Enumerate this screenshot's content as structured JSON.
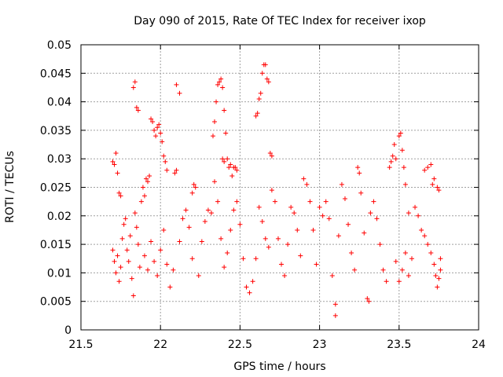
{
  "chart_data": {
    "type": "scatter",
    "title": "Day 090 of 2015, Rate Of TEC Index for receiver ixop",
    "xlabel": "GPS time / hours",
    "ylabel": "ROTI / TECUs",
    "xlim": [
      21.5,
      24
    ],
    "ylim": [
      0,
      0.05
    ],
    "grid": true,
    "marker": "+",
    "color": "#ff0000",
    "x_ticks": [
      "21.5",
      "22",
      "22.5",
      "23",
      "23.5",
      "24"
    ],
    "y_ticks": [
      "0",
      "0.005",
      "0.01",
      "0.015",
      "0.02",
      "0.025",
      "0.03",
      "0.035",
      "0.04",
      "0.045",
      "0.05"
    ],
    "series": [
      {
        "name": "ROTI",
        "points": [
          [
            21.7,
            0.0295
          ],
          [
            21.71,
            0.029
          ],
          [
            21.72,
            0.031
          ],
          [
            21.73,
            0.0275
          ],
          [
            21.74,
            0.024
          ],
          [
            21.75,
            0.0235
          ],
          [
            21.7,
            0.014
          ],
          [
            21.71,
            0.012
          ],
          [
            21.72,
            0.01
          ],
          [
            21.73,
            0.013
          ],
          [
            21.74,
            0.0085
          ],
          [
            21.75,
            0.011
          ],
          [
            21.76,
            0.016
          ],
          [
            21.77,
            0.0185
          ],
          [
            21.78,
            0.0195
          ],
          [
            21.79,
            0.014
          ],
          [
            21.8,
            0.012
          ],
          [
            21.81,
            0.0165
          ],
          [
            21.82,
            0.009
          ],
          [
            21.83,
            0.006
          ],
          [
            21.84,
            0.0205
          ],
          [
            21.85,
            0.018
          ],
          [
            21.86,
            0.015
          ],
          [
            21.87,
            0.011
          ],
          [
            21.83,
            0.0425
          ],
          [
            21.84,
            0.0435
          ],
          [
            21.85,
            0.039
          ],
          [
            21.86,
            0.0385
          ],
          [
            21.88,
            0.0225
          ],
          [
            21.89,
            0.025
          ],
          [
            21.9,
            0.0235
          ],
          [
            21.91,
            0.0265
          ],
          [
            21.92,
            0.026
          ],
          [
            21.93,
            0.027
          ],
          [
            21.94,
            0.037
          ],
          [
            21.95,
            0.0365
          ],
          [
            21.96,
            0.035
          ],
          [
            21.97,
            0.034
          ],
          [
            21.98,
            0.0355
          ],
          [
            21.99,
            0.036
          ],
          [
            22.0,
            0.0345
          ],
          [
            22.01,
            0.033
          ],
          [
            22.02,
            0.0305
          ],
          [
            22.03,
            0.0295
          ],
          [
            22.04,
            0.028
          ],
          [
            21.9,
            0.013
          ],
          [
            21.92,
            0.0105
          ],
          [
            21.94,
            0.0155
          ],
          [
            21.96,
            0.012
          ],
          [
            21.98,
            0.0095
          ],
          [
            22.0,
            0.014
          ],
          [
            22.02,
            0.0175
          ],
          [
            22.04,
            0.0115
          ],
          [
            22.06,
            0.0075
          ],
          [
            22.08,
            0.0105
          ],
          [
            22.09,
            0.0275
          ],
          [
            22.1,
            0.028
          ],
          [
            22.1,
            0.043
          ],
          [
            22.12,
            0.0415
          ],
          [
            22.12,
            0.0155
          ],
          [
            22.14,
            0.0195
          ],
          [
            22.16,
            0.021
          ],
          [
            22.18,
            0.018
          ],
          [
            22.2,
            0.0125
          ],
          [
            22.2,
            0.024
          ],
          [
            22.21,
            0.0255
          ],
          [
            22.22,
            0.025
          ],
          [
            22.24,
            0.0095
          ],
          [
            22.26,
            0.0155
          ],
          [
            22.28,
            0.019
          ],
          [
            22.3,
            0.021
          ],
          [
            22.32,
            0.0205
          ],
          [
            22.34,
            0.026
          ],
          [
            22.33,
            0.034
          ],
          [
            22.34,
            0.0365
          ],
          [
            22.35,
            0.04
          ],
          [
            22.36,
            0.043
          ],
          [
            22.37,
            0.0435
          ],
          [
            22.38,
            0.044
          ],
          [
            22.39,
            0.0425
          ],
          [
            22.4,
            0.0385
          ],
          [
            22.39,
            0.03
          ],
          [
            22.4,
            0.0295
          ],
          [
            22.41,
            0.0345
          ],
          [
            22.42,
            0.03
          ],
          [
            22.43,
            0.0285
          ],
          [
            22.44,
            0.029
          ],
          [
            22.45,
            0.027
          ],
          [
            22.46,
            0.0285
          ],
          [
            22.47,
            0.0285
          ],
          [
            22.48,
            0.028
          ],
          [
            22.36,
            0.0225
          ],
          [
            22.38,
            0.016
          ],
          [
            22.4,
            0.011
          ],
          [
            22.42,
            0.0135
          ],
          [
            22.44,
            0.0175
          ],
          [
            22.46,
            0.021
          ],
          [
            22.48,
            0.0225
          ],
          [
            22.5,
            0.0185
          ],
          [
            22.52,
            0.0125
          ],
          [
            22.54,
            0.0075
          ],
          [
            22.56,
            0.0065
          ],
          [
            22.58,
            0.0085
          ],
          [
            22.6,
            0.0125
          ],
          [
            22.6,
            0.0375
          ],
          [
            22.61,
            0.038
          ],
          [
            22.62,
            0.0405
          ],
          [
            22.63,
            0.0415
          ],
          [
            22.64,
            0.045
          ],
          [
            22.65,
            0.0465
          ],
          [
            22.66,
            0.0465
          ],
          [
            22.67,
            0.044
          ],
          [
            22.68,
            0.0435
          ],
          [
            22.69,
            0.031
          ],
          [
            22.7,
            0.0305
          ],
          [
            22.62,
            0.0215
          ],
          [
            22.64,
            0.019
          ],
          [
            22.66,
            0.016
          ],
          [
            22.68,
            0.0145
          ],
          [
            22.7,
            0.0245
          ],
          [
            22.72,
            0.0225
          ],
          [
            22.74,
            0.016
          ],
          [
            22.76,
            0.0115
          ],
          [
            22.78,
            0.0095
          ],
          [
            22.8,
            0.015
          ],
          [
            22.82,
            0.0215
          ],
          [
            22.84,
            0.0205
          ],
          [
            22.86,
            0.0175
          ],
          [
            22.88,
            0.013
          ],
          [
            22.9,
            0.0265
          ],
          [
            22.92,
            0.0255
          ],
          [
            22.94,
            0.0225
          ],
          [
            22.96,
            0.0175
          ],
          [
            22.98,
            0.0115
          ],
          [
            23.0,
            0.0215
          ],
          [
            23.02,
            0.02
          ],
          [
            23.04,
            0.0225
          ],
          [
            23.06,
            0.0195
          ],
          [
            23.08,
            0.0095
          ],
          [
            23.1,
            0.0045
          ],
          [
            23.1,
            0.0025
          ],
          [
            23.12,
            0.0165
          ],
          [
            23.14,
            0.0255
          ],
          [
            23.16,
            0.023
          ],
          [
            23.18,
            0.0185
          ],
          [
            23.2,
            0.0135
          ],
          [
            23.22,
            0.0105
          ],
          [
            23.24,
            0.0285
          ],
          [
            23.25,
            0.0275
          ],
          [
            23.26,
            0.024
          ],
          [
            23.28,
            0.017
          ],
          [
            23.3,
            0.0055
          ],
          [
            23.31,
            0.005
          ],
          [
            23.32,
            0.0205
          ],
          [
            23.34,
            0.0225
          ],
          [
            23.36,
            0.0195
          ],
          [
            23.38,
            0.015
          ],
          [
            23.4,
            0.0105
          ],
          [
            23.42,
            0.0085
          ],
          [
            23.44,
            0.0285
          ],
          [
            23.45,
            0.0295
          ],
          [
            23.46,
            0.0305
          ],
          [
            23.47,
            0.0325
          ],
          [
            23.48,
            0.03
          ],
          [
            23.5,
            0.034
          ],
          [
            23.51,
            0.0345
          ],
          [
            23.52,
            0.0315
          ],
          [
            23.53,
            0.0285
          ],
          [
            23.54,
            0.0255
          ],
          [
            23.56,
            0.0205
          ],
          [
            23.48,
            0.012
          ],
          [
            23.5,
            0.0085
          ],
          [
            23.52,
            0.0105
          ],
          [
            23.54,
            0.0135
          ],
          [
            23.56,
            0.0095
          ],
          [
            23.58,
            0.0125
          ],
          [
            23.6,
            0.0215
          ],
          [
            23.62,
            0.02
          ],
          [
            23.64,
            0.0175
          ],
          [
            23.66,
            0.0165
          ],
          [
            23.68,
            0.015
          ],
          [
            23.7,
            0.0135
          ],
          [
            23.66,
            0.028
          ],
          [
            23.68,
            0.0285
          ],
          [
            23.7,
            0.029
          ],
          [
            23.71,
            0.0255
          ],
          [
            23.72,
            0.0265
          ],
          [
            23.74,
            0.025
          ],
          [
            23.75,
            0.0245
          ],
          [
            23.72,
            0.0115
          ],
          [
            23.73,
            0.0095
          ],
          [
            23.74,
            0.0075
          ],
          [
            23.75,
            0.009
          ],
          [
            23.76,
            0.0105
          ],
          [
            23.76,
            0.0125
          ]
        ]
      }
    ]
  }
}
